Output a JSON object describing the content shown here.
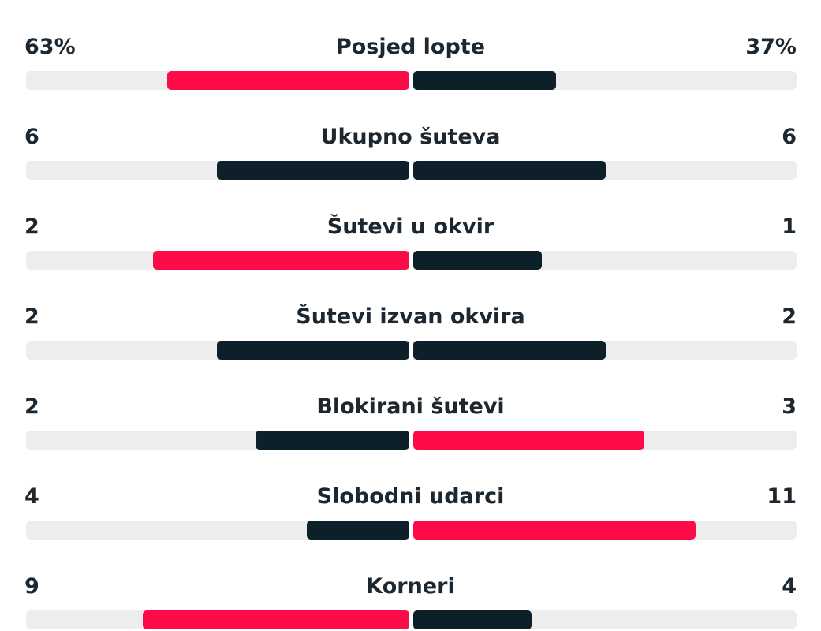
{
  "colors": {
    "leader": "#ff0a48",
    "other": "#0d1f29",
    "track": "#ededed"
  },
  "stats": [
    {
      "label": "Posjed lopte",
      "home": "63%",
      "away": "37%",
      "home_value": 63,
      "away_value": 37,
      "max": 100,
      "leader": "home"
    },
    {
      "label": "Ukupno šuteva",
      "home": "6",
      "away": "6",
      "home_value": 6,
      "away_value": 6,
      "max": 12,
      "leader": "none"
    },
    {
      "label": "Šutevi u okvir",
      "home": "2",
      "away": "1",
      "home_value": 2,
      "away_value": 1,
      "max": 3,
      "leader": "home"
    },
    {
      "label": "Šutevi izvan okvira",
      "home": "2",
      "away": "2",
      "home_value": 2,
      "away_value": 2,
      "max": 4,
      "leader": "none"
    },
    {
      "label": "Blokirani šutevi",
      "home": "2",
      "away": "3",
      "home_value": 2,
      "away_value": 3,
      "max": 5,
      "leader": "away"
    },
    {
      "label": "Slobodni udarci",
      "home": "4",
      "away": "11",
      "home_value": 4,
      "away_value": 11,
      "max": 15,
      "leader": "away"
    },
    {
      "label": "Korneri",
      "home": "9",
      "away": "4",
      "home_value": 9,
      "away_value": 4,
      "max": 13,
      "leader": "home"
    }
  ]
}
